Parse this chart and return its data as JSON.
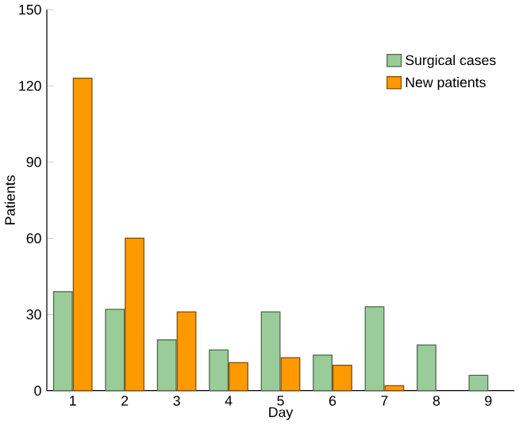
{
  "chart_data": {
    "type": "bar",
    "xlabel": "Day",
    "ylabel": "Patients",
    "categories": [
      "1",
      "2",
      "3",
      "4",
      "5",
      "6",
      "7",
      "8",
      "9"
    ],
    "series": [
      {
        "name": "Surgical cases",
        "color": "#99cc99",
        "values": [
          39,
          32,
          20,
          16,
          31,
          14,
          33,
          18,
          6
        ]
      },
      {
        "name": "New patients",
        "color": "#ff9900",
        "values": [
          123,
          60,
          31,
          11,
          13,
          10,
          2,
          null,
          null
        ]
      }
    ],
    "ylim": [
      0,
      150
    ],
    "yticks": [
      0,
      30,
      60,
      90,
      120,
      150
    ],
    "legend": "top right",
    "grid": false
  }
}
